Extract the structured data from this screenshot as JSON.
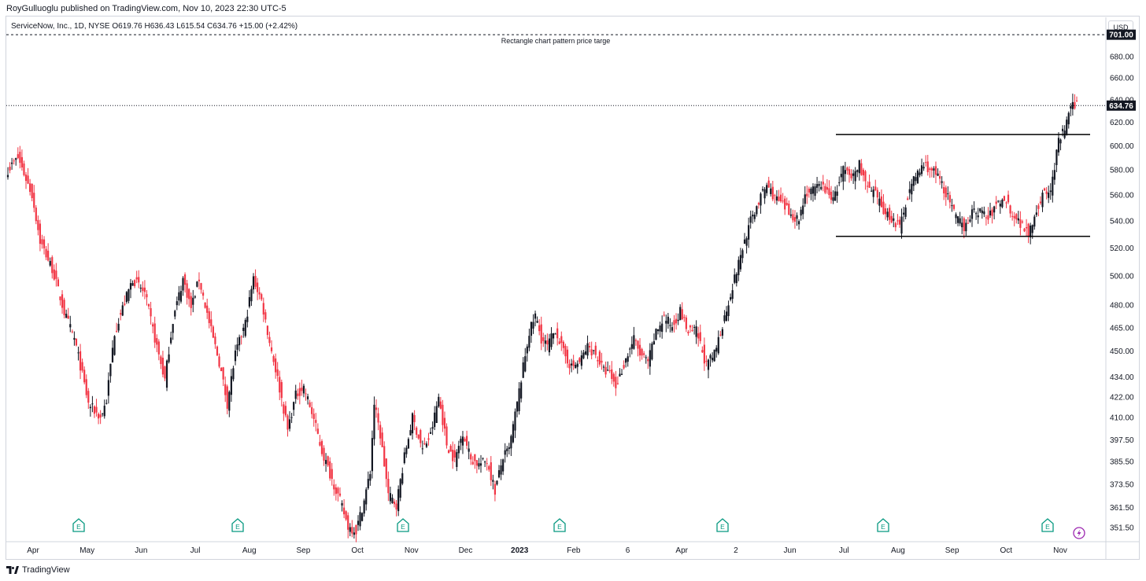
{
  "header": {
    "credit": "RoyGulluoglu published on TradingView.com, Nov 10, 2023 22:30 UTC-5",
    "symbol_line": "ServiceNow, Inc., 1D, NYSE  O619.76  H636.43  L615.54  C634.76  +15.00 (+2.42%)",
    "currency": "USD"
  },
  "footer": {
    "logo_text": "TradingView"
  },
  "colors": {
    "up": "#131722",
    "down": "#f23645",
    "earnings": "#089981",
    "grid": "#d1d4dc"
  },
  "icons": {
    "earnings": "E",
    "dividend": "lightning-icon"
  },
  "chart_data": {
    "type": "candlestick",
    "title": "",
    "xlabel": "",
    "ylabel": "",
    "scale": "log",
    "ylim": [
      345,
      712
    ],
    "grid": false,
    "y_ticks": [
      351.5,
      361.5,
      373.5,
      385.5,
      397.5,
      410.0,
      422.0,
      434.0,
      450.0,
      465.0,
      480.0,
      500.0,
      520.0,
      540.0,
      560.0,
      580.0,
      600.0,
      620.0,
      640.0,
      660.0,
      680.0
    ],
    "x_ticks": [
      "Apr",
      "May",
      "Jun",
      "Jul",
      "Aug",
      "Sep",
      "Oct",
      "Nov",
      "Dec",
      "2023",
      "Feb",
      "6",
      "Apr",
      "2",
      "Jun",
      "Jul",
      "Aug",
      "Sep",
      "Oct",
      "Nov"
    ],
    "price_labels": [
      {
        "label": "701.00",
        "value": 701.0,
        "style": "target"
      },
      {
        "label": "634.76",
        "value": 634.76,
        "style": "last"
      }
    ],
    "annotations": [
      {
        "text": "Rectangle chart pattern price targe",
        "value": 701.0
      },
      {
        "type": "horizontal-segment",
        "value": 609.5,
        "from": "Jul",
        "to": "Nov"
      },
      {
        "type": "horizontal-segment",
        "value": 528.5,
        "from": "Jul",
        "to": "Nov"
      }
    ],
    "earnings_markers": [
      "May",
      "Jul",
      "Oct",
      "Jan",
      "Apr",
      "Jul",
      "Oct"
    ],
    "dividend_markers": [
      "Nov"
    ],
    "series": [
      {
        "path": [
          [
            0,
            580
          ],
          [
            5,
            590
          ],
          [
            12,
            560
          ],
          [
            16,
            525
          ],
          [
            22,
            505
          ],
          [
            28,
            475
          ],
          [
            33,
            458
          ],
          [
            40,
            418
          ],
          [
            46,
            410
          ],
          [
            49,
            420
          ],
          [
            53,
            462
          ],
          [
            57,
            478
          ],
          [
            62,
            498
          ],
          [
            68,
            488
          ],
          [
            73,
            458
          ],
          [
            78,
            432
          ],
          [
            82,
            470
          ],
          [
            87,
            498
          ],
          [
            91,
            478
          ],
          [
            95,
            498
          ],
          [
            100,
            468
          ],
          [
            105,
            443
          ],
          [
            109,
            418
          ],
          [
            113,
            448
          ],
          [
            118,
            468
          ],
          [
            122,
            498
          ],
          [
            126,
            483
          ],
          [
            130,
            456
          ],
          [
            134,
            433
          ],
          [
            139,
            403
          ],
          [
            143,
            423
          ],
          [
            147,
            428
          ],
          [
            152,
            409
          ],
          [
            156,
            391
          ],
          [
            160,
            379
          ],
          [
            165,
            365
          ],
          [
            169,
            352
          ],
          [
            173,
            350
          ],
          [
            177,
            365
          ],
          [
            180,
            380
          ],
          [
            182,
            418
          ],
          [
            185,
            400
          ],
          [
            189,
            368
          ],
          [
            193,
            363
          ],
          [
            197,
            388
          ],
          [
            201,
            410
          ],
          [
            206,
            392
          ],
          [
            210,
            400
          ],
          [
            214,
            422
          ],
          [
            218,
            395
          ],
          [
            222,
            386
          ],
          [
            226,
            402
          ],
          [
            230,
            387
          ],
          [
            234,
            384
          ],
          [
            238,
            386
          ],
          [
            242,
            370
          ],
          [
            246,
            388
          ],
          [
            249,
            392
          ],
          [
            253,
            418
          ],
          [
            256,
            440
          ],
          [
            259,
            462
          ],
          [
            262,
            473
          ],
          [
            265,
            458
          ],
          [
            268,
            453
          ],
          [
            272,
            464
          ],
          [
            276,
            449
          ],
          [
            280,
            440
          ],
          [
            284,
            443
          ],
          [
            288,
            453
          ],
          [
            292,
            448
          ],
          [
            296,
            438
          ],
          [
            299,
            436
          ],
          [
            302,
            428
          ],
          [
            307,
            445
          ],
          [
            311,
            458
          ],
          [
            314,
            448
          ],
          [
            318,
            443
          ],
          [
            322,
            462
          ],
          [
            326,
            472
          ],
          [
            330,
            466
          ],
          [
            334,
            476
          ],
          [
            338,
            462
          ],
          [
            342,
            463
          ],
          [
            347,
            441
          ],
          [
            351,
            448
          ],
          [
            356,
            472
          ],
          [
            361,
            498
          ],
          [
            365,
            520
          ],
          [
            369,
            540
          ],
          [
            373,
            555
          ],
          [
            377,
            568
          ],
          [
            381,
            558
          ],
          [
            385,
            552
          ],
          [
            389,
            545
          ],
          [
            393,
            541
          ],
          [
            396,
            561
          ],
          [
            400,
            563
          ],
          [
            404,
            569
          ],
          [
            408,
            559
          ],
          [
            411,
            560
          ],
          [
            415,
            580
          ],
          [
            419,
            573
          ],
          [
            423,
            585
          ],
          [
            427,
            565
          ],
          [
            431,
            560
          ],
          [
            435,
            548
          ],
          [
            439,
            542
          ],
          [
            443,
            535
          ],
          [
            447,
            560
          ],
          [
            451,
            575
          ],
          [
            455,
            584
          ],
          [
            459,
            580
          ],
          [
            463,
            572
          ],
          [
            467,
            558
          ],
          [
            471,
            542
          ],
          [
            475,
            536
          ],
          [
            479,
            546
          ],
          [
            483,
            548
          ],
          [
            487,
            542
          ],
          [
            491,
            552
          ],
          [
            495,
            558
          ],
          [
            499,
            546
          ],
          [
            503,
            538
          ],
          [
            507,
            532
          ],
          [
            511,
            548
          ],
          [
            514,
            560
          ],
          [
            518,
            563
          ],
          [
            522,
            603
          ],
          [
            525,
            615
          ],
          [
            528,
            632
          ],
          [
            531,
            637
          ]
        ]
      }
    ]
  }
}
